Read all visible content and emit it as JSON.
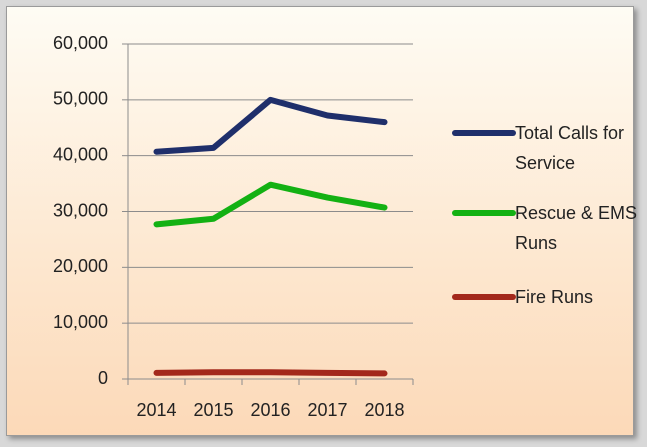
{
  "chart_data": {
    "type": "line",
    "categories": [
      "2014",
      "2015",
      "2016",
      "2017",
      "2018"
    ],
    "series": [
      {
        "name": "Total Calls for Service",
        "color": "#1f2f6b",
        "values": [
          40700,
          41400,
          50000,
          47200,
          46000
        ]
      },
      {
        "name": "Rescue & EMS Runs",
        "color": "#13b113",
        "values": [
          27700,
          28700,
          34800,
          32500,
          30700
        ]
      },
      {
        "name": "Fire Runs",
        "color": "#a3281b",
        "values": [
          1100,
          1200,
          1200,
          1100,
          1000
        ]
      }
    ],
    "ylim": [
      0,
      60000
    ],
    "yticks": [
      0,
      {
        "value": 10000,
        "label": "10,000"
      },
      {
        "value": 20000,
        "label": "20,000"
      },
      {
        "value": 30000,
        "label": "30,000"
      },
      {
        "value": 40000,
        "label": "40,000"
      },
      {
        "value": 50000,
        "label": "50,000"
      },
      {
        "value": 60000,
        "label": "60,000"
      }
    ],
    "grid": true,
    "legend": "right"
  }
}
